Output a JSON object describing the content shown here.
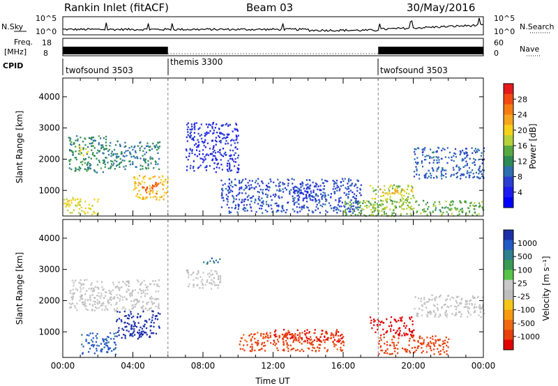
{
  "header": {
    "station": "Rankin Inlet (fitACF)",
    "beam": "Beam 03",
    "date": "30/May/2016"
  },
  "panels": {
    "nsky": {
      "left_label": "N.Sky",
      "right_label": "N.Search",
      "left_ticks": [
        "10^5",
        "10^0"
      ],
      "right_ticks": [
        "10^5",
        "10^0"
      ]
    },
    "freq": {
      "left_label": "Freq.",
      "left_unit": "[MHz]",
      "right_label": "Nave",
      "left_ticks": [
        "18",
        "8"
      ],
      "right_ticks": [
        "60",
        "0"
      ]
    },
    "cpid": {
      "label": "CPID",
      "segments": [
        "twofsound 3503",
        "themis 3300",
        "twofsound 3503"
      ]
    }
  },
  "colorbars": {
    "power": {
      "title": "Power [dB]",
      "labels": [
        "28",
        "24",
        "20",
        "16",
        "12",
        "8",
        "4"
      ],
      "colors": [
        "#e41a1c",
        "#f24a12",
        "#f57c14",
        "#f5a51e",
        "#f5d21a",
        "#b6d13b",
        "#58a843",
        "#2e8b57",
        "#2f6fb0",
        "#2b3fd0",
        "#1d1cf0",
        "#0000ff"
      ]
    },
    "velocity": {
      "title": "Velocity [m s⁻¹]",
      "labels": [
        "1000",
        "500",
        "100",
        "25",
        "-25",
        "-100",
        "-500",
        "-1000"
      ],
      "colors": [
        "#1a2fa8",
        "#2359c6",
        "#2f7f8f",
        "#3a9a55",
        "#58c34a",
        "#c8c8c8",
        "#bdbdbd",
        "#f5c518",
        "#f59a12",
        "#f06a10",
        "#e8400d",
        "#e00000"
      ]
    }
  },
  "chart_data": [
    {
      "type": "heatmap",
      "title": "",
      "xlabel": "",
      "ylabel": "Slant Range [km]",
      "x_ticks": [
        "00:00",
        "04:00",
        "08:00",
        "12:00",
        "16:00",
        "20:00",
        "00:00"
      ],
      "y_ticks": [
        "1000",
        "2000",
        "3000",
        "4000"
      ],
      "xlim_hours": [
        0,
        24
      ],
      "ylim_km": [
        180,
        4600
      ],
      "mode_change_hours": [
        6,
        18
      ],
      "blobs": [
        {
          "x": [
            0.3,
            2.5
          ],
          "y": [
            1600,
            2800
          ],
          "v": 11
        },
        {
          "x": 1.2,
          "y": 2300,
          "v": 18
        },
        {
          "x": [
            2.5,
            5.5
          ],
          "y": [
            1700,
            2600
          ],
          "v": 10
        },
        {
          "x": [
            4,
            6
          ],
          "y": [
            700,
            1500
          ],
          "v": 20
        },
        {
          "x": [
            4.5,
            5.5
          ],
          "y": [
            900,
            1300
          ],
          "v": 25
        },
        {
          "x": [
            0,
            2
          ],
          "y": [
            250,
            800
          ],
          "v": 18
        },
        {
          "x": [
            7,
            10
          ],
          "y": [
            1600,
            3200
          ],
          "v": 5
        },
        {
          "x": [
            9,
            17
          ],
          "y": [
            300,
            1400
          ],
          "v": 7
        },
        {
          "x": [
            13,
            15
          ],
          "y": [
            700,
            1300
          ],
          "v": 6
        },
        {
          "x": [
            17.5,
            20
          ],
          "y": [
            400,
            1200
          ],
          "v": 16
        },
        {
          "x": [
            18,
            20
          ],
          "y": [
            900,
            1100
          ],
          "v": 20
        },
        {
          "x": [
            20,
            24
          ],
          "y": [
            1400,
            2400
          ],
          "v": 8
        },
        {
          "x": [
            16,
            24
          ],
          "y": [
            200,
            700
          ],
          "v": 14
        }
      ]
    },
    {
      "type": "heatmap",
      "title": "",
      "xlabel": "Time UT",
      "ylabel": "Slant Range [km]",
      "x_ticks": [
        "00:00",
        "04:00",
        "08:00",
        "12:00",
        "16:00",
        "20:00",
        "00:00"
      ],
      "y_ticks": [
        "1000",
        "2000",
        "3000",
        "4000"
      ],
      "xlim_hours": [
        0,
        24
      ],
      "ylim_km": [
        180,
        4600
      ],
      "mode_change_hours": [
        6,
        18
      ],
      "blobs": [
        {
          "x": [
            0.3,
            5.5
          ],
          "y": [
            1700,
            2700
          ],
          "v": 0
        },
        {
          "x": [
            3,
            5.5
          ],
          "y": [
            800,
            1700
          ],
          "v": 700
        },
        {
          "x": [
            1,
            3
          ],
          "y": [
            300,
            1000
          ],
          "v": 150
        },
        {
          "x": [
            7,
            9
          ],
          "y": [
            2400,
            3000
          ],
          "v": 0
        },
        {
          "x": [
            8,
            9
          ],
          "y": [
            3200,
            3400
          ],
          "v": 90
        },
        {
          "x": [
            10,
            16
          ],
          "y": [
            400,
            1000
          ],
          "v": -150
        },
        {
          "x": [
            12,
            16
          ],
          "y": [
            700,
            1100
          ],
          "v": -400
        },
        {
          "x": [
            17.5,
            20
          ],
          "y": [
            900,
            1500
          ],
          "v": -800
        },
        {
          "x": [
            18,
            22
          ],
          "y": [
            300,
            900
          ],
          "v": -250
        },
        {
          "x": [
            20,
            24
          ],
          "y": [
            1500,
            2200
          ],
          "v": 0
        }
      ]
    }
  ],
  "aux_data": {
    "nsky_level": 0.3,
    "freq_band_hours": [
      [
        0,
        6
      ],
      [
        18,
        24
      ]
    ]
  }
}
